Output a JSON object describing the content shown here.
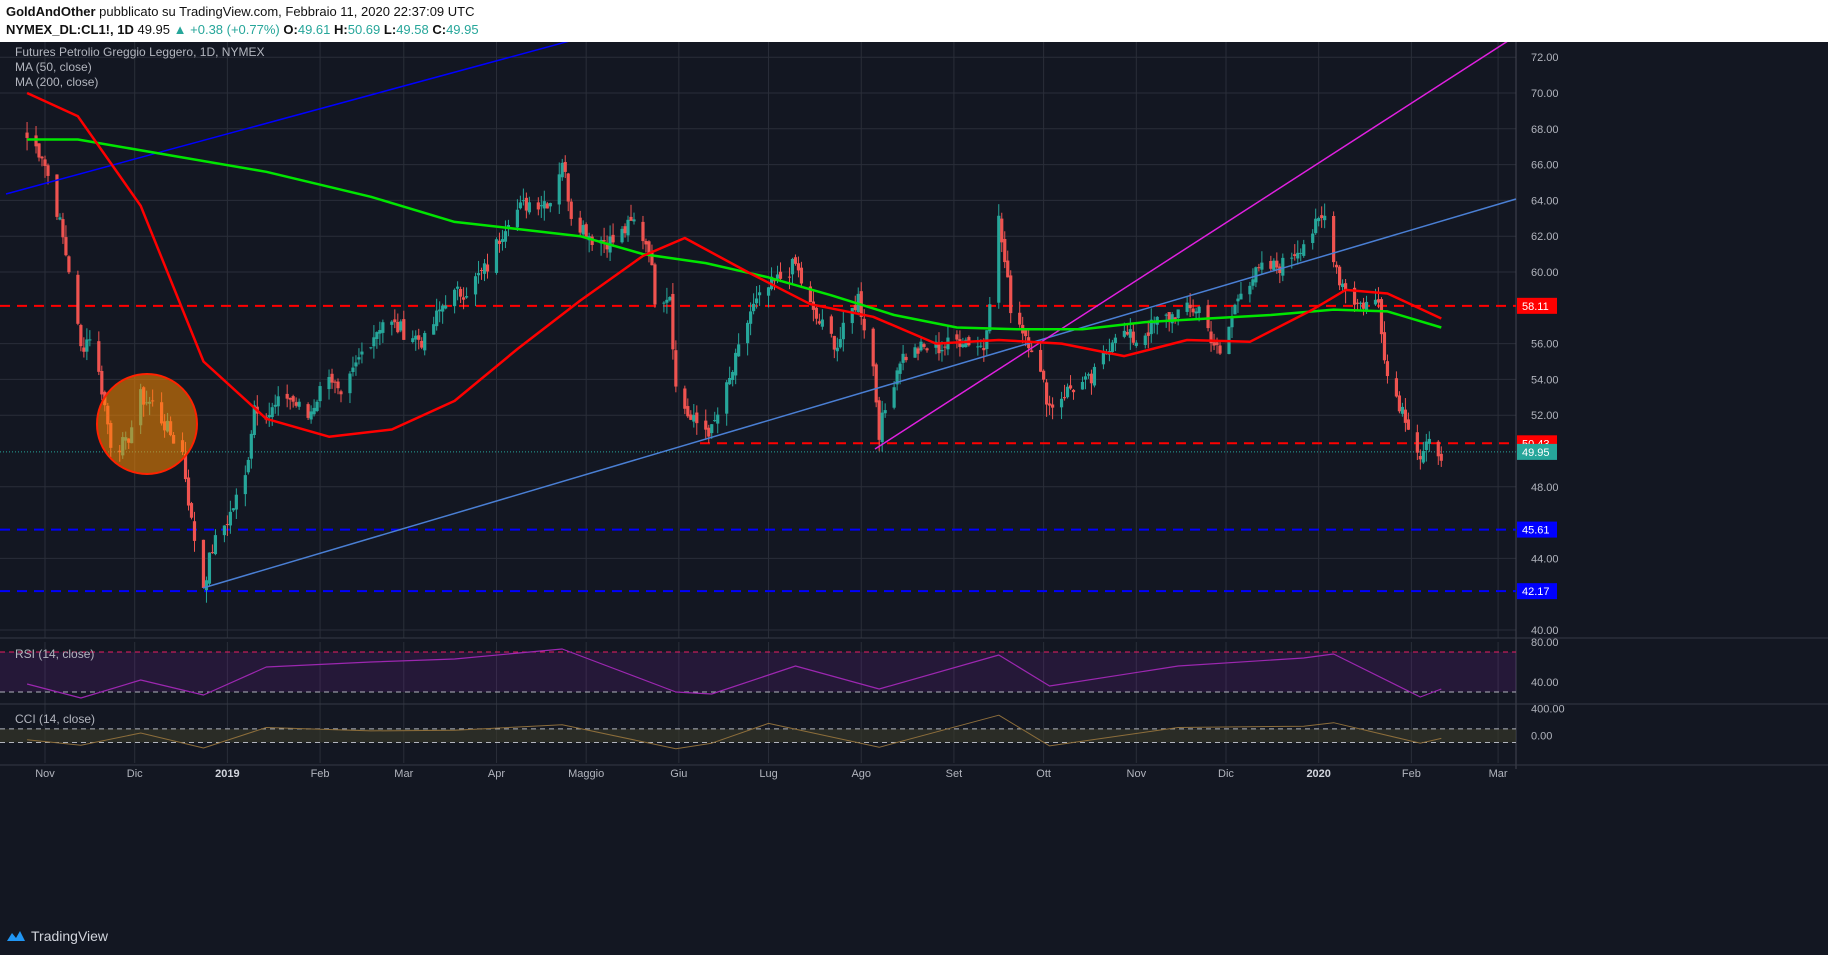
{
  "header": {
    "author": "GoldAndOther",
    "published": "pubblicato su TradingView.com, Febbraio 11, 2020 22:37:09 UTC",
    "symbol": "NYMEX_DL:CL1!, 1D",
    "last": "49.95",
    "change": "▲ +0.38 (+0.77%)",
    "o_label": "O:",
    "o_value": "49.61",
    "h_label": "H:",
    "h_value": "50.69",
    "l_label": "L:",
    "l_value": "49.58",
    "c_label": "C:",
    "c_value": "49.95"
  },
  "legend": {
    "title": "Futures Petrolio Greggio Leggero, 1D, NYMEX",
    "ma50": "MA (50, close)",
    "ma200": "MA (200, close)",
    "rsi": "RSI (14, close)",
    "cci": "CCI (14, close)"
  },
  "brand": {
    "name": "TradingView",
    "icon": "tradingview-logo-icon"
  },
  "colors": {
    "background": "#131722",
    "grid": "#2a2e39",
    "candle_up": "#26a69a",
    "candle_down": "#ef5350",
    "ma50": "#ff0000",
    "ma200": "#00e600",
    "dashed_red": "#ff0000",
    "dashed_blue": "#0000ff",
    "trend_blue": "#0000ff",
    "trend_lightblue": "#4a7fd4",
    "trend_magenta": "#e020e0",
    "circle": "#ff8c00",
    "rsi": "#9c27b0",
    "cci": "#8d6e3b"
  },
  "chart_data": [
    {
      "type": "candlestick",
      "symbol": "NYMEX_DL:CL1!",
      "x_tick_labels": [
        "Nov",
        "Dic",
        "2019",
        "Feb",
        "Mar",
        "Apr",
        "Maggio",
        "Giu",
        "Lug",
        "Ago",
        "Set",
        "Ott",
        "Nov",
        "Dic",
        "2020",
        "Feb",
        "Mar"
      ],
      "y_tick_labels": [
        "40.00",
        "44.00",
        "48.00",
        "52.00",
        "54.00",
        "56.00",
        "60.00",
        "62.00",
        "64.00",
        "66.00",
        "68.00",
        "70.00",
        "72.00"
      ],
      "ylim": [
        40,
        72.5
      ],
      "price_labels": [
        {
          "value": 58.11,
          "text": "58.11",
          "color": "#ff0000",
          "style": "dashed line"
        },
        {
          "value": 50.43,
          "text": "50.43",
          "color": "#ff0000",
          "style": "dashed line"
        },
        {
          "value": 49.95,
          "text": "49.95",
          "color": "#26a69a",
          "style": "last price"
        },
        {
          "value": 45.61,
          "text": "45.61",
          "color": "#0000ff",
          "style": "dashed line"
        },
        {
          "value": 42.17,
          "text": "42.17",
          "color": "#0000ff",
          "style": "dashed line"
        }
      ],
      "close_series": [
        {
          "x": "2018-10-26",
          "y": 67.5
        },
        {
          "x": "2018-10-31",
          "y": 66.6
        },
        {
          "x": "2018-11-05",
          "y": 63.5
        },
        {
          "x": "2018-11-09",
          "y": 60.2
        },
        {
          "x": "2018-11-13",
          "y": 55.7
        },
        {
          "x": "2018-11-16",
          "y": 56.5
        },
        {
          "x": "2018-11-20",
          "y": 53.5
        },
        {
          "x": "2018-11-23",
          "y": 50.5
        },
        {
          "x": "2018-11-28",
          "y": 50.3
        },
        {
          "x": "2018-12-03",
          "y": 53.0
        },
        {
          "x": "2018-12-07",
          "y": 52.6
        },
        {
          "x": "2018-12-12",
          "y": 51.2
        },
        {
          "x": "2018-12-17",
          "y": 49.9
        },
        {
          "x": "2018-12-20",
          "y": 46.0
        },
        {
          "x": "2018-12-24",
          "y": 42.5
        },
        {
          "x": "2018-12-27",
          "y": 44.6
        },
        {
          "x": "2019-01-02",
          "y": 46.5
        },
        {
          "x": "2019-01-07",
          "y": 48.5
        },
        {
          "x": "2019-01-10",
          "y": 52.6
        },
        {
          "x": "2019-01-15",
          "y": 52.1
        },
        {
          "x": "2019-01-21",
          "y": 53.1
        },
        {
          "x": "2019-01-28",
          "y": 51.9
        },
        {
          "x": "2019-02-04",
          "y": 54.5
        },
        {
          "x": "2019-02-08",
          "y": 52.7
        },
        {
          "x": "2019-02-15",
          "y": 55.5
        },
        {
          "x": "2019-02-22",
          "y": 57.3
        },
        {
          "x": "2019-03-01",
          "y": 56.7
        },
        {
          "x": "2019-03-08",
          "y": 56.1
        },
        {
          "x": "2019-03-15",
          "y": 58.5
        },
        {
          "x": "2019-03-22",
          "y": 59.0
        },
        {
          "x": "2019-03-29",
          "y": 60.3
        },
        {
          "x": "2019-04-05",
          "y": 63.1
        },
        {
          "x": "2019-04-12",
          "y": 63.9
        },
        {
          "x": "2019-04-19",
          "y": 64.0
        },
        {
          "x": "2019-04-23",
          "y": 66.3
        },
        {
          "x": "2019-04-26",
          "y": 63.3
        },
        {
          "x": "2019-05-03",
          "y": 61.9
        },
        {
          "x": "2019-05-10",
          "y": 61.7
        },
        {
          "x": "2019-05-17",
          "y": 62.8
        },
        {
          "x": "2019-05-22",
          "y": 61.4
        },
        {
          "x": "2019-05-24",
          "y": 58.6
        },
        {
          "x": "2019-05-29",
          "y": 58.8
        },
        {
          "x": "2019-05-31",
          "y": 53.5
        },
        {
          "x": "2019-06-05",
          "y": 51.7
        },
        {
          "x": "2019-06-12",
          "y": 51.1
        },
        {
          "x": "2019-06-18",
          "y": 53.9
        },
        {
          "x": "2019-06-25",
          "y": 57.8
        },
        {
          "x": "2019-07-01",
          "y": 59.1
        },
        {
          "x": "2019-07-10",
          "y": 60.4
        },
        {
          "x": "2019-07-16",
          "y": 57.6
        },
        {
          "x": "2019-07-24",
          "y": 55.9
        },
        {
          "x": "2019-07-31",
          "y": 58.6
        },
        {
          "x": "2019-08-05",
          "y": 54.7
        },
        {
          "x": "2019-08-07",
          "y": 51.1
        },
        {
          "x": "2019-08-14",
          "y": 55.2
        },
        {
          "x": "2019-08-21",
          "y": 55.7
        },
        {
          "x": "2019-08-28",
          "y": 55.8
        },
        {
          "x": "2019-09-04",
          "y": 56.3
        },
        {
          "x": "2019-09-11",
          "y": 55.8
        },
        {
          "x": "2019-09-16",
          "y": 62.9
        },
        {
          "x": "2019-09-20",
          "y": 58.1
        },
        {
          "x": "2019-09-27",
          "y": 55.9
        },
        {
          "x": "2019-10-03",
          "y": 52.5
        },
        {
          "x": "2019-10-10",
          "y": 53.5
        },
        {
          "x": "2019-10-17",
          "y": 53.9
        },
        {
          "x": "2019-10-25",
          "y": 56.7
        },
        {
          "x": "2019-11-01",
          "y": 56.2
        },
        {
          "x": "2019-11-08",
          "y": 57.2
        },
        {
          "x": "2019-11-15",
          "y": 57.7
        },
        {
          "x": "2019-11-22",
          "y": 58.0
        },
        {
          "x": "2019-11-29",
          "y": 55.2
        },
        {
          "x": "2019-12-06",
          "y": 59.2
        },
        {
          "x": "2019-12-13",
          "y": 60.1
        },
        {
          "x": "2019-12-20",
          "y": 60.4
        },
        {
          "x": "2019-12-27",
          "y": 61.7
        },
        {
          "x": "2020-01-03",
          "y": 63.1
        },
        {
          "x": "2020-01-08",
          "y": 59.6
        },
        {
          "x": "2020-01-14",
          "y": 58.2
        },
        {
          "x": "2020-01-21",
          "y": 58.3
        },
        {
          "x": "2020-01-24",
          "y": 54.2
        },
        {
          "x": "2020-01-31",
          "y": 51.6
        },
        {
          "x": "2020-02-04",
          "y": 49.6
        },
        {
          "x": "2020-02-07",
          "y": 50.3
        },
        {
          "x": "2020-02-11",
          "y": 49.95
        }
      ]
    },
    {
      "type": "line",
      "name": "MA (50, close)",
      "color": "#ff0000",
      "points": [
        {
          "x": "2018-10-26",
          "y": 70.0
        },
        {
          "x": "2018-11-12",
          "y": 68.7
        },
        {
          "x": "2018-12-03",
          "y": 63.7
        },
        {
          "x": "2018-12-24",
          "y": 55.0
        },
        {
          "x": "2019-01-14",
          "y": 51.8
        },
        {
          "x": "2019-02-04",
          "y": 50.8
        },
        {
          "x": "2019-02-25",
          "y": 51.2
        },
        {
          "x": "2019-03-18",
          "y": 52.8
        },
        {
          "x": "2019-04-08",
          "y": 55.7
        },
        {
          "x": "2019-04-29",
          "y": 58.4
        },
        {
          "x": "2019-05-20",
          "y": 60.9
        },
        {
          "x": "2019-06-03",
          "y": 61.9
        },
        {
          "x": "2019-06-24",
          "y": 60.0
        },
        {
          "x": "2019-07-15",
          "y": 58.2
        },
        {
          "x": "2019-08-05",
          "y": 57.5
        },
        {
          "x": "2019-08-26",
          "y": 56.0
        },
        {
          "x": "2019-09-16",
          "y": 56.2
        },
        {
          "x": "2019-10-07",
          "y": 56.0
        },
        {
          "x": "2019-10-28",
          "y": 55.3
        },
        {
          "x": "2019-11-18",
          "y": 56.2
        },
        {
          "x": "2019-12-09",
          "y": 56.1
        },
        {
          "x": "2019-12-30",
          "y": 57.9
        },
        {
          "x": "2020-01-10",
          "y": 59.0
        },
        {
          "x": "2020-01-24",
          "y": 58.8
        },
        {
          "x": "2020-02-11",
          "y": 57.4
        }
      ]
    },
    {
      "type": "line",
      "name": "MA (200, close)",
      "color": "#00e600",
      "points": [
        {
          "x": "2018-10-26",
          "y": 67.4
        },
        {
          "x": "2018-11-12",
          "y": 67.4
        },
        {
          "x": "2018-12-10",
          "y": 66.6
        },
        {
          "x": "2019-01-14",
          "y": 65.6
        },
        {
          "x": "2019-02-18",
          "y": 64.2
        },
        {
          "x": "2019-03-18",
          "y": 62.8
        },
        {
          "x": "2019-04-08",
          "y": 62.4
        },
        {
          "x": "2019-04-29",
          "y": 62.0
        },
        {
          "x": "2019-05-20",
          "y": 61.0
        },
        {
          "x": "2019-06-10",
          "y": 60.5
        },
        {
          "x": "2019-07-01",
          "y": 59.7
        },
        {
          "x": "2019-07-22",
          "y": 58.7
        },
        {
          "x": "2019-08-12",
          "y": 57.6
        },
        {
          "x": "2019-09-02",
          "y": 56.9
        },
        {
          "x": "2019-09-23",
          "y": 56.8
        },
        {
          "x": "2019-10-14",
          "y": 56.8
        },
        {
          "x": "2019-11-04",
          "y": 57.2
        },
        {
          "x": "2019-11-25",
          "y": 57.4
        },
        {
          "x": "2019-12-16",
          "y": 57.6
        },
        {
          "x": "2020-01-06",
          "y": 57.9
        },
        {
          "x": "2020-01-24",
          "y": 57.8
        },
        {
          "x": "2020-02-11",
          "y": 56.9
        }
      ]
    },
    {
      "type": "line",
      "name": "RSI (14, close)",
      "color": "#9c27b0",
      "y_tick_labels": [
        "80.00",
        "40.00"
      ],
      "ylim": [
        20,
        80
      ],
      "bands": [
        70,
        30
      ],
      "points": [
        {
          "x": "2018-10-26",
          "y": 38
        },
        {
          "x": "2018-11-13",
          "y": 24
        },
        {
          "x": "2018-12-03",
          "y": 42
        },
        {
          "x": "2018-12-24",
          "y": 27
        },
        {
          "x": "2019-01-14",
          "y": 55
        },
        {
          "x": "2019-02-18",
          "y": 60
        },
        {
          "x": "2019-03-18",
          "y": 63
        },
        {
          "x": "2019-04-23",
          "y": 73
        },
        {
          "x": "2019-05-31",
          "y": 30
        },
        {
          "x": "2019-06-12",
          "y": 28
        },
        {
          "x": "2019-07-10",
          "y": 56
        },
        {
          "x": "2019-08-07",
          "y": 33
        },
        {
          "x": "2019-09-16",
          "y": 67
        },
        {
          "x": "2019-10-03",
          "y": 36
        },
        {
          "x": "2019-11-15",
          "y": 56
        },
        {
          "x": "2019-12-27",
          "y": 64
        },
        {
          "x": "2020-01-06",
          "y": 68
        },
        {
          "x": "2020-02-04",
          "y": 25
        },
        {
          "x": "2020-02-11",
          "y": 33
        }
      ]
    },
    {
      "type": "line",
      "name": "CCI (14, close)",
      "color": "#8d6e3b",
      "y_tick_labels": [
        "400.00",
        "0.00"
      ],
      "ylim": [
        -400,
        450
      ],
      "bands": [
        100,
        -100
      ],
      "points": [
        {
          "x": "2018-10-26",
          "y": -60
        },
        {
          "x": "2018-11-13",
          "y": -140
        },
        {
          "x": "2018-12-03",
          "y": 40
        },
        {
          "x": "2018-12-24",
          "y": -180
        },
        {
          "x": "2019-01-14",
          "y": 120
        },
        {
          "x": "2019-02-18",
          "y": 70
        },
        {
          "x": "2019-03-18",
          "y": 80
        },
        {
          "x": "2019-04-23",
          "y": 160
        },
        {
          "x": "2019-05-31",
          "y": -190
        },
        {
          "x": "2019-06-12",
          "y": -110
        },
        {
          "x": "2019-07-01",
          "y": 180
        },
        {
          "x": "2019-08-07",
          "y": -170
        },
        {
          "x": "2019-09-16",
          "y": 300
        },
        {
          "x": "2019-10-03",
          "y": -150
        },
        {
          "x": "2019-11-15",
          "y": 120
        },
        {
          "x": "2019-12-27",
          "y": 140
        },
        {
          "x": "2020-01-06",
          "y": 190
        },
        {
          "x": "2020-02-04",
          "y": -110
        },
        {
          "x": "2020-02-11",
          "y": -40
        }
      ]
    }
  ]
}
